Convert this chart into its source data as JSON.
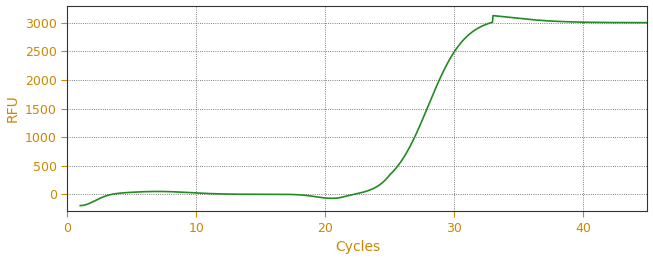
{
  "title": "",
  "xlabel": "Cycles",
  "ylabel": "RFU",
  "xlim": [
    0,
    45
  ],
  "ylim": [
    -300,
    3300
  ],
  "yticks": [
    0,
    500,
    1000,
    1500,
    2000,
    2500,
    3000
  ],
  "xticks": [
    0,
    10,
    20,
    30,
    40
  ],
  "line_color": "#228B22",
  "bg_color": "#ffffff",
  "grid_color": "#555555",
  "spine_color": "#333333",
  "tick_color": "#cc8800",
  "label_color": "#cc8800",
  "figsize": [
    6.53,
    2.6
  ],
  "dpi": 100
}
